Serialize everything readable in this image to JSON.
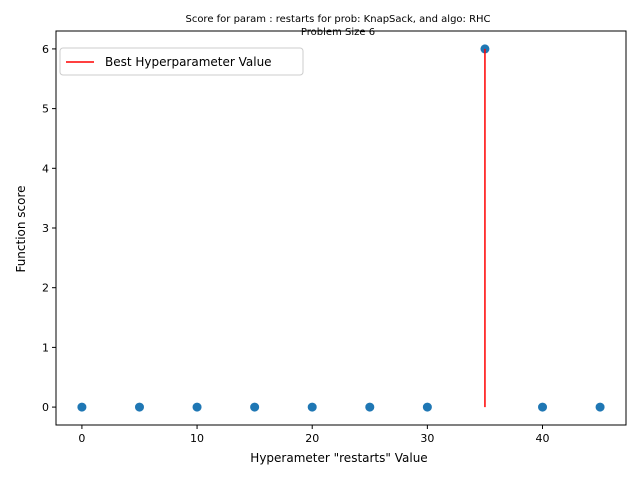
{
  "chart_data": {
    "type": "scatter",
    "title": "Score for param : restarts for prob: KnapSack, and algo: RHC",
    "subtitle": "Problem Size 6",
    "xlabel": "Hyperameter \"restarts\" Value",
    "ylabel": "Function score",
    "xlim": [
      -2.25,
      47.25
    ],
    "ylim": [
      -0.3,
      6.3
    ],
    "xticks": [
      0,
      10,
      20,
      30,
      40
    ],
    "yticks": [
      0,
      1,
      2,
      3,
      4,
      5,
      6
    ],
    "grid": false,
    "legend_position": "top-left",
    "series": [
      {
        "x": [
          0,
          5,
          10,
          15,
          20,
          25,
          30,
          35,
          40,
          45
        ],
        "y": [
          0,
          0,
          0,
          0,
          0,
          0,
          0,
          6,
          0,
          0
        ],
        "color": "#1f77b4"
      }
    ],
    "best_line": {
      "name": "Best Hyperparameter Value",
      "x": 35,
      "y_from": 0,
      "y_to": 6,
      "color": "#ff0000"
    }
  }
}
